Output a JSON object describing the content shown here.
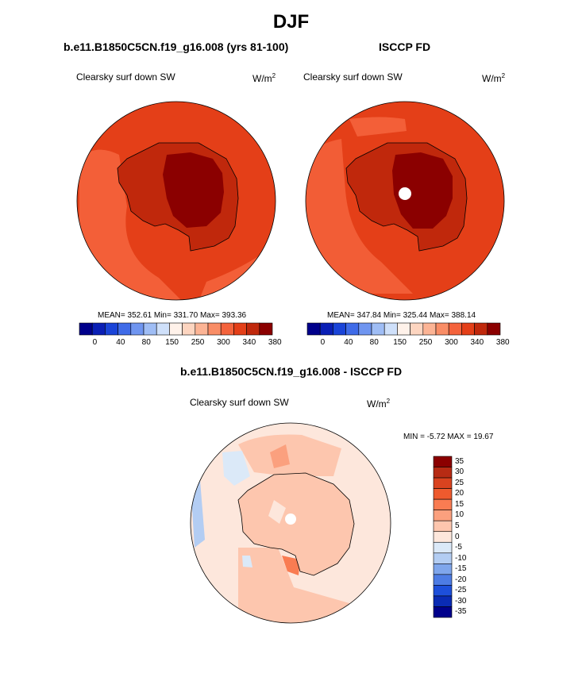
{
  "title": "DJF",
  "panel_left": {
    "subtitle": "b.e11.B1850C5CN.f19_g16.008 (yrs 81-100)",
    "variable": "Clearsky surf down SW",
    "units": "W/m",
    "units_sup": "2",
    "stats": "MEAN= 352.61  Min= 331.70  Max= 393.36"
  },
  "panel_right": {
    "subtitle": "ISCCP FD",
    "variable": "Clearsky surf down SW",
    "units": "W/m",
    "units_sup": "2",
    "stats": "MEAN= 347.84  Min= 325.44  Max= 388.14"
  },
  "panel_diff": {
    "subtitle": "b.e11.B1850C5CN.f19_g16.008 - ISCCP FD",
    "variable": "Clearsky surf down SW",
    "units": "W/m",
    "units_sup": "2",
    "stats": "MIN =  -5.72 MAX =  19.67"
  },
  "top_colorbar": {
    "labels": [
      "0",
      "40",
      "80",
      "150",
      "250",
      "300",
      "340",
      "380"
    ],
    "colors": [
      "#00008b",
      "#0a1fb5",
      "#1a44d8",
      "#3f6be8",
      "#6f95f0",
      "#9fbdf5",
      "#cfe0fa",
      "#fff2ea",
      "#fdd5c0",
      "#fcb495",
      "#f98d66",
      "#f4633c",
      "#e43f18",
      "#c0280c",
      "#8b0000"
    ]
  },
  "diff_colorbar": {
    "labels": [
      "35",
      "30",
      "25",
      "20",
      "15",
      "10",
      "5",
      "0",
      "-5",
      "-10",
      "-15",
      "-20",
      "-25",
      "-30",
      "-35"
    ],
    "colors": [
      "#8b0000",
      "#b72b14",
      "#d9431f",
      "#ee5a2e",
      "#f97c52",
      "#fba07e",
      "#fdc6ae",
      "#fde7dc",
      "#dbe9f8",
      "#b3cdf3",
      "#7fa6ec",
      "#4d7ce4",
      "#1d4fda",
      "#0a2bb4",
      "#00008b"
    ]
  },
  "chart_data": [
    {
      "type": "heatmap",
      "title": "b.e11.B1850C5CN.f19_g16.008 (yrs 81-100)",
      "variable": "Clearsky surf down SW",
      "units": "W/m2",
      "mean": 352.61,
      "min": 331.7,
      "max": 393.36,
      "levels": [
        0,
        40,
        80,
        150,
        250,
        300,
        340,
        380
      ]
    },
    {
      "type": "heatmap",
      "title": "ISCCP FD",
      "variable": "Clearsky surf down SW",
      "units": "W/m2",
      "mean": 347.84,
      "min": 325.44,
      "max": 388.14,
      "levels": [
        0,
        40,
        80,
        150,
        250,
        300,
        340,
        380
      ]
    },
    {
      "type": "heatmap",
      "title": "b.e11.B1850C5CN.f19_g16.008 - ISCCP FD",
      "variable": "Clearsky surf down SW",
      "units": "W/m2",
      "min": -5.72,
      "max": 19.67,
      "levels": [
        35,
        30,
        25,
        20,
        15,
        10,
        5,
        0,
        -5,
        -10,
        -15,
        -20,
        -25,
        -30,
        -35
      ]
    }
  ]
}
